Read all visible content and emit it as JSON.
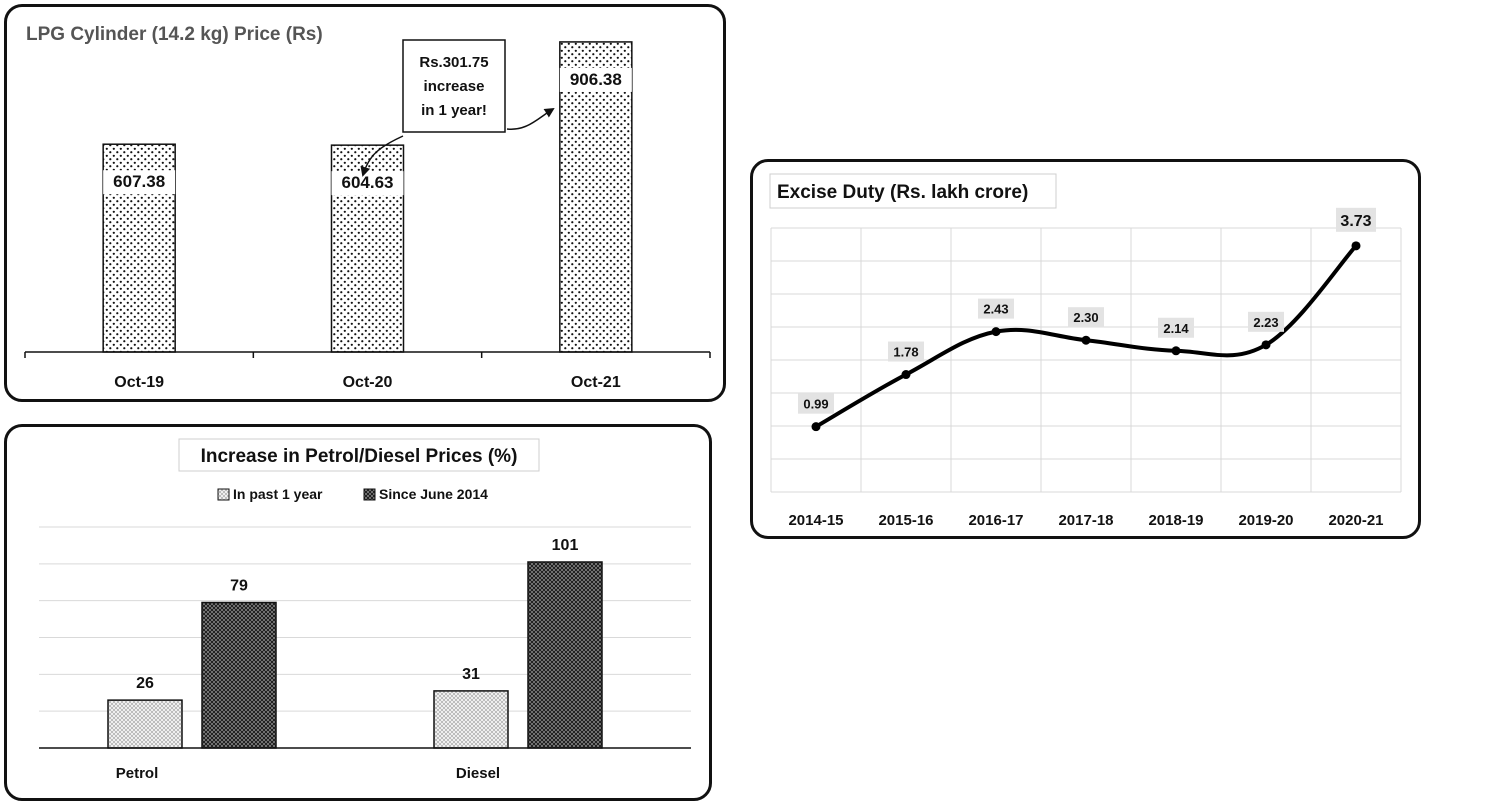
{
  "chart_data": [
    {
      "type": "bar",
      "title": "LPG Cylinder (14.2 kg) Price (Rs)",
      "categories": [
        "Oct-19",
        "Oct-20",
        "Oct-21"
      ],
      "values": [
        607.38,
        604.63,
        906.38
      ],
      "value_labels": [
        "607.38",
        "604.63",
        "906.38"
      ],
      "annotation": [
        "Rs.301.75",
        "increase",
        "in 1 year!"
      ],
      "ylim": [
        0,
        950
      ],
      "grid": false,
      "fill_pattern": "dotted"
    },
    {
      "type": "bar",
      "title": "Increase in Petrol/Diesel Prices (%)",
      "categories": [
        "Petrol",
        "Diesel"
      ],
      "series": [
        {
          "name": "In past 1 year",
          "values": [
            26,
            31
          ],
          "labels": [
            "26",
            "31"
          ],
          "fill_pattern": "light-checker"
        },
        {
          "name": "Since June 2014",
          "values": [
            79,
            101
          ],
          "labels": [
            "79",
            "101"
          ],
          "fill_pattern": "dark-checker"
        }
      ],
      "ylim": [
        0,
        120
      ],
      "grid": true,
      "legend_position": "top"
    },
    {
      "type": "line",
      "title": "Excise Duty (Rs. lakh crore)",
      "x": [
        "2014-15",
        "2015-16",
        "2016-17",
        "2017-18",
        "2018-19",
        "2019-20",
        "2020-21"
      ],
      "values": [
        0.99,
        1.78,
        2.43,
        2.3,
        2.14,
        2.23,
        3.73
      ],
      "value_labels": [
        "0.99",
        "1.78",
        "2.43",
        "2.30",
        "2.14",
        "2.23",
        "3.73"
      ],
      "ylim": [
        0.0,
        4.0
      ],
      "grid": true,
      "smooth": true
    }
  ]
}
